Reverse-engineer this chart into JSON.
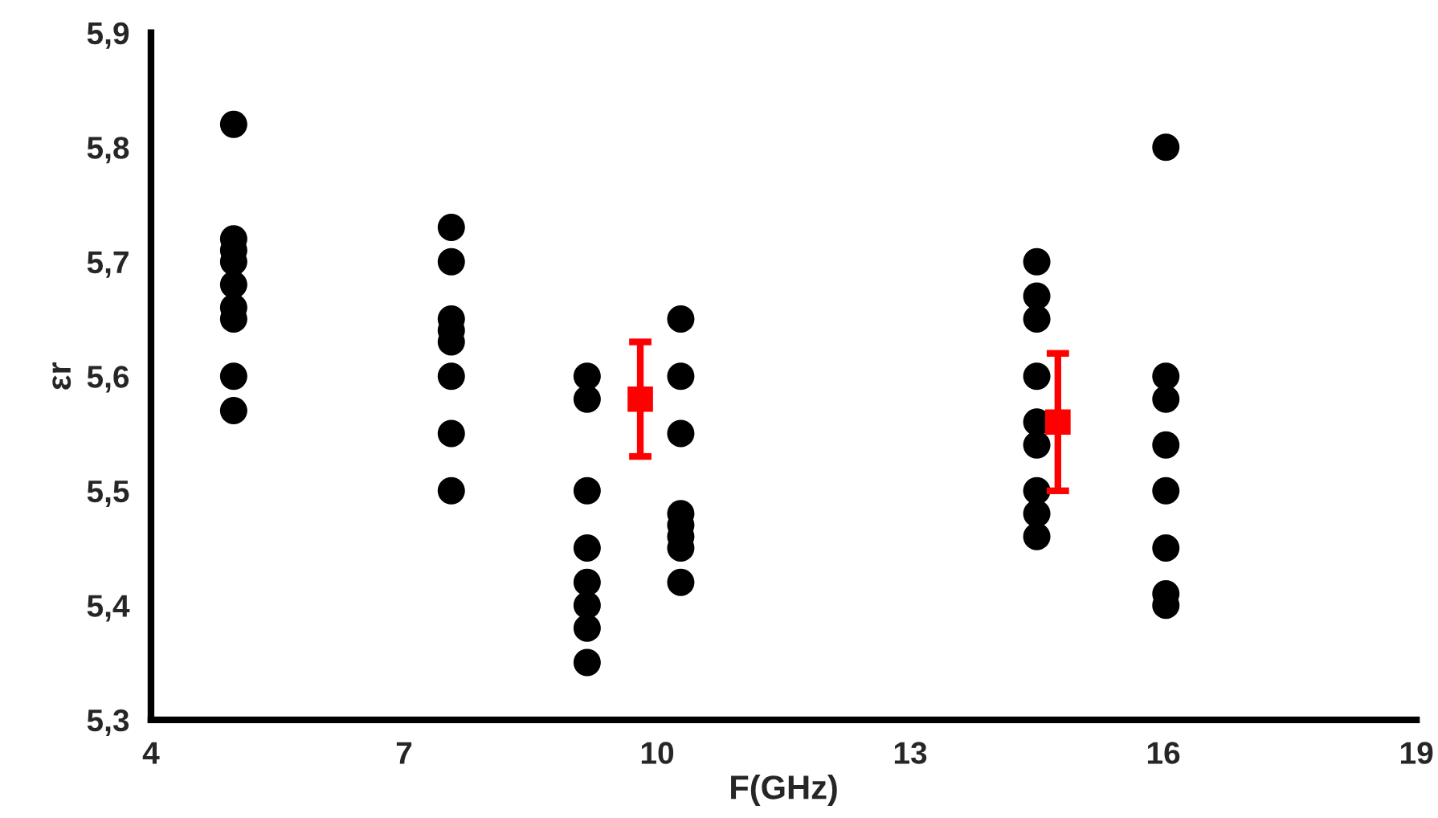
{
  "chart_data": {
    "type": "scatter",
    "xlabel": "F(GHz)",
    "ylabel": "εr",
    "xlim": [
      4,
      19
    ],
    "xticks": [
      4,
      7,
      10,
      13,
      16,
      19
    ],
    "ylim": [
      5.3,
      5.9
    ],
    "yticks": [
      {
        "value": 5.3,
        "label": "5,3"
      },
      {
        "value": 5.4,
        "label": "5,4"
      },
      {
        "value": 5.5,
        "label": "5,5"
      },
      {
        "value": 5.6,
        "label": "5,6"
      },
      {
        "value": 5.7,
        "label": "5,7"
      },
      {
        "value": 5.8,
        "label": "5,8"
      },
      {
        "value": 5.9,
        "label": "5,9"
      }
    ],
    "grid": false,
    "legend": false,
    "series": [
      {
        "color": "#000000",
        "marker": "circle",
        "x": [
          4.98,
          4.98,
          4.98,
          4.98,
          4.98,
          4.98,
          4.98,
          4.98,
          4.98,
          7.56,
          7.56,
          7.56,
          7.56,
          7.56,
          7.56,
          7.56,
          7.56,
          9.17,
          9.17,
          9.17,
          9.17,
          9.17,
          9.17,
          9.17,
          9.17,
          10.28,
          10.28,
          10.28,
          10.28,
          10.28,
          10.28,
          10.28,
          10.28,
          14.5,
          14.5,
          14.5,
          14.5,
          14.5,
          14.5,
          14.5,
          14.5,
          14.5,
          16.03,
          16.03,
          16.03,
          16.03,
          16.03,
          16.03,
          16.03,
          16.03
        ],
        "values": [
          5.82,
          5.72,
          5.71,
          5.7,
          5.68,
          5.66,
          5.65,
          5.6,
          5.57,
          5.73,
          5.7,
          5.65,
          5.64,
          5.63,
          5.6,
          5.55,
          5.5,
          5.6,
          5.58,
          5.5,
          5.45,
          5.42,
          5.4,
          5.38,
          5.35,
          5.65,
          5.6,
          5.55,
          5.48,
          5.47,
          5.46,
          5.45,
          5.42,
          5.7,
          5.67,
          5.65,
          5.6,
          5.56,
          5.54,
          5.5,
          5.48,
          5.46,
          5.8,
          5.6,
          5.58,
          5.54,
          5.5,
          5.45,
          5.41,
          5.4
        ]
      },
      {
        "color": "#ff0000",
        "marker": "square",
        "x": [
          9.8,
          14.75
        ],
        "values": [
          5.58,
          5.56
        ],
        "errors": [
          [
            5.53,
            5.63
          ],
          [
            5.5,
            5.62
          ]
        ]
      }
    ]
  }
}
